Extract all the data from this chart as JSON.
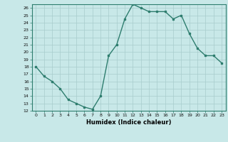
{
  "xlabel": "Humidex (Indice chaleur)",
  "ylabel": "",
  "x_values": [
    0,
    1,
    2,
    3,
    4,
    5,
    6,
    7,
    8,
    9,
    10,
    11,
    12,
    13,
    14,
    15,
    16,
    17,
    18,
    19,
    20,
    21,
    22,
    23
  ],
  "y_values": [
    18,
    16.7,
    16,
    15,
    13.5,
    13,
    12.5,
    12.2,
    14,
    19.5,
    21,
    24.5,
    26.5,
    26,
    25.5,
    25.5,
    25.5,
    24.5,
    25,
    22.5,
    20.5,
    19.5,
    19.5,
    18.5
  ],
  "line_color": "#2e7d6e",
  "marker_color": "#2e7d6e",
  "bg_color": "#c8e8e8",
  "grid_color": "#a8cccc",
  "ylim": [
    12,
    26.5
  ],
  "xlim": [
    -0.5,
    23.5
  ],
  "yticks": [
    12,
    13,
    14,
    15,
    16,
    17,
    18,
    19,
    20,
    21,
    22,
    23,
    24,
    25,
    26
  ],
  "xticks": [
    0,
    1,
    2,
    3,
    4,
    5,
    6,
    7,
    8,
    9,
    10,
    11,
    12,
    13,
    14,
    15,
    16,
    17,
    18,
    19,
    20,
    21,
    22,
    23
  ],
  "xtick_labels": [
    "0",
    "1",
    "2",
    "3",
    "4",
    "5",
    "6",
    "7",
    "8",
    "9",
    "10",
    "11",
    "12",
    "13",
    "14",
    "15",
    "16",
    "17",
    "18",
    "19",
    "20",
    "21",
    "22",
    "23"
  ],
  "marker_size": 2,
  "line_width": 1.0
}
